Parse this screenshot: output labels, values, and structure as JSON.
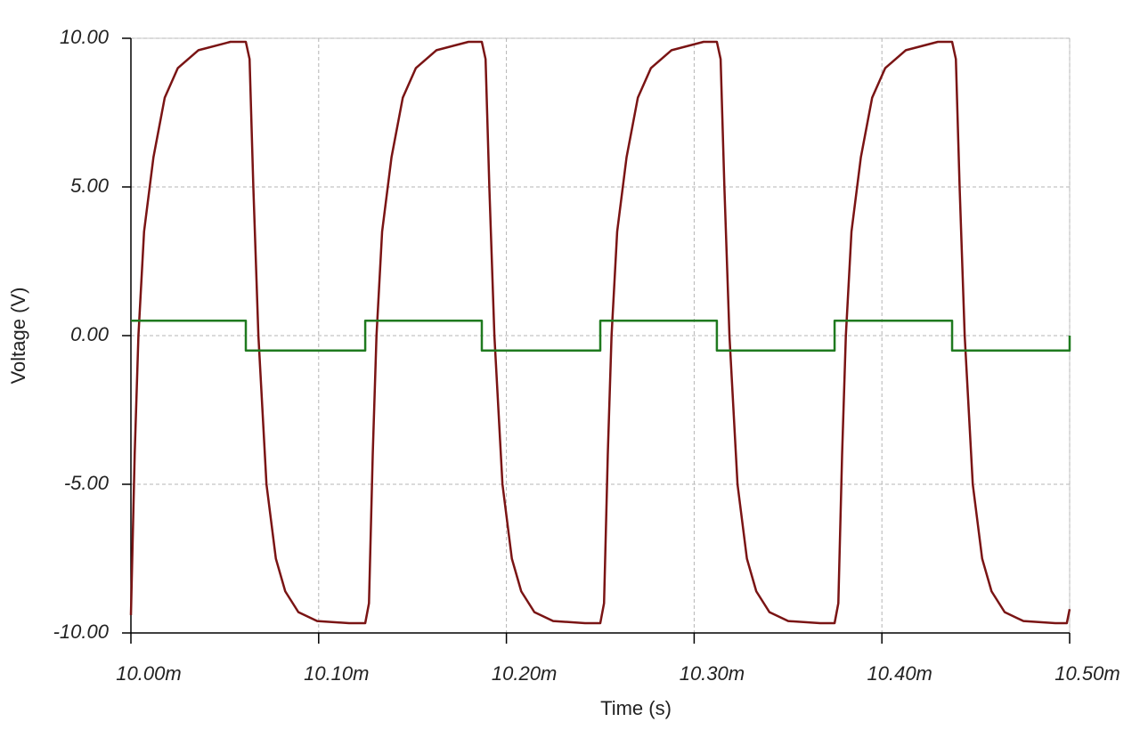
{
  "chart_data": {
    "type": "line",
    "xlabel": "Time (s)",
    "ylabel": "Voltage (V)",
    "xlim": [
      0.01,
      0.0105
    ],
    "ylim": [
      -10,
      10
    ],
    "xticks": [
      {
        "value": 0.01,
        "label": "10.00m"
      },
      {
        "value": 0.0101,
        "label": "10.10m"
      },
      {
        "value": 0.0102,
        "label": "10.20m"
      },
      {
        "value": 0.0103,
        "label": "10.30m"
      },
      {
        "value": 0.0104,
        "label": "10.40m"
      },
      {
        "value": 0.0105,
        "label": "10.50m"
      }
    ],
    "yticks": [
      {
        "value": -10,
        "label": "-10.00"
      },
      {
        "value": -5,
        "label": "-5.00"
      },
      {
        "value": 0,
        "label": "0.00"
      },
      {
        "value": 5,
        "label": "5.00"
      },
      {
        "value": 10,
        "label": "10.00"
      }
    ],
    "grid": true,
    "series": [
      {
        "color": "#7a1414",
        "x": [
          0.01,
          0.010002,
          0.010004,
          0.010007,
          0.010012,
          0.010018,
          0.010025,
          0.010036,
          0.010053,
          0.0100612,
          0.0100632,
          0.0100652,
          0.0100679,
          0.0100722,
          0.0100772,
          0.0100822,
          0.0100892,
          0.0100992,
          0.0101162,
          0.0101248,
          0.0101268,
          0.0101288,
          0.0101308,
          0.0101338,
          0.0101388,
          0.0101448,
          0.0101518,
          0.0101628,
          0.0101798,
          0.0101869,
          0.0101889,
          0.0101909,
          0.0101936,
          0.0101979,
          0.0102029,
          0.0102079,
          0.0102149,
          0.0102249,
          0.0102419,
          0.01025,
          0.010252,
          0.010254,
          0.010256,
          0.010259,
          0.010264,
          0.01027,
          0.010277,
          0.010288,
          0.010305,
          0.0103121,
          0.0103141,
          0.0103161,
          0.0103188,
          0.0103231,
          0.0103281,
          0.0103331,
          0.0103401,
          0.0103501,
          0.0103671,
          0.0103748,
          0.0103768,
          0.0103788,
          0.0103808,
          0.0103838,
          0.0103888,
          0.0103948,
          0.0104018,
          0.0104128,
          0.0104298,
          0.0104374,
          0.0104394,
          0.0104414,
          0.0104441,
          0.0104484,
          0.0104534,
          0.0104584,
          0.0104654,
          0.0104754,
          0.0104924,
          0.0104985,
          0.0105
        ],
        "values": [
          -9.4,
          -4,
          0,
          3.5,
          6,
          8,
          9,
          9.6,
          9.88,
          9.88,
          9.3,
          5,
          0,
          -5,
          -7.5,
          -8.6,
          -9.3,
          -9.6,
          -9.67,
          -9.67,
          -9,
          -4,
          0,
          3.5,
          6,
          8,
          9,
          9.6,
          9.88,
          9.88,
          9.3,
          5,
          0,
          -5,
          -7.5,
          -8.6,
          -9.3,
          -9.6,
          -9.67,
          -9.67,
          -9,
          -4,
          0,
          3.5,
          6,
          8,
          9,
          9.6,
          9.88,
          9.88,
          9.3,
          5,
          0,
          -5,
          -7.5,
          -8.6,
          -9.3,
          -9.6,
          -9.67,
          -9.67,
          -9,
          -4,
          0,
          3.5,
          6,
          8,
          9,
          9.6,
          9.88,
          9.88,
          9.3,
          5,
          0,
          -5,
          -7.5,
          -8.6,
          -9.3,
          -9.6,
          -9.67,
          -9.67,
          -9.2
        ]
      },
      {
        "color": "#1f7a1f",
        "x": [
          0.01,
          0.0100612,
          0.0100612,
          0.0101248,
          0.0101248,
          0.0101869,
          0.0101869,
          0.01025,
          0.01025,
          0.0103121,
          0.0103121,
          0.0103748,
          0.0103748,
          0.0104374,
          0.0104374,
          0.0105,
          0.0105
        ],
        "values": [
          0.5,
          0.5,
          -0.5,
          -0.5,
          0.5,
          0.5,
          -0.5,
          -0.5,
          0.5,
          0.5,
          -0.5,
          -0.5,
          0.5,
          0.5,
          -0.5,
          -0.5,
          0
        ]
      }
    ]
  }
}
